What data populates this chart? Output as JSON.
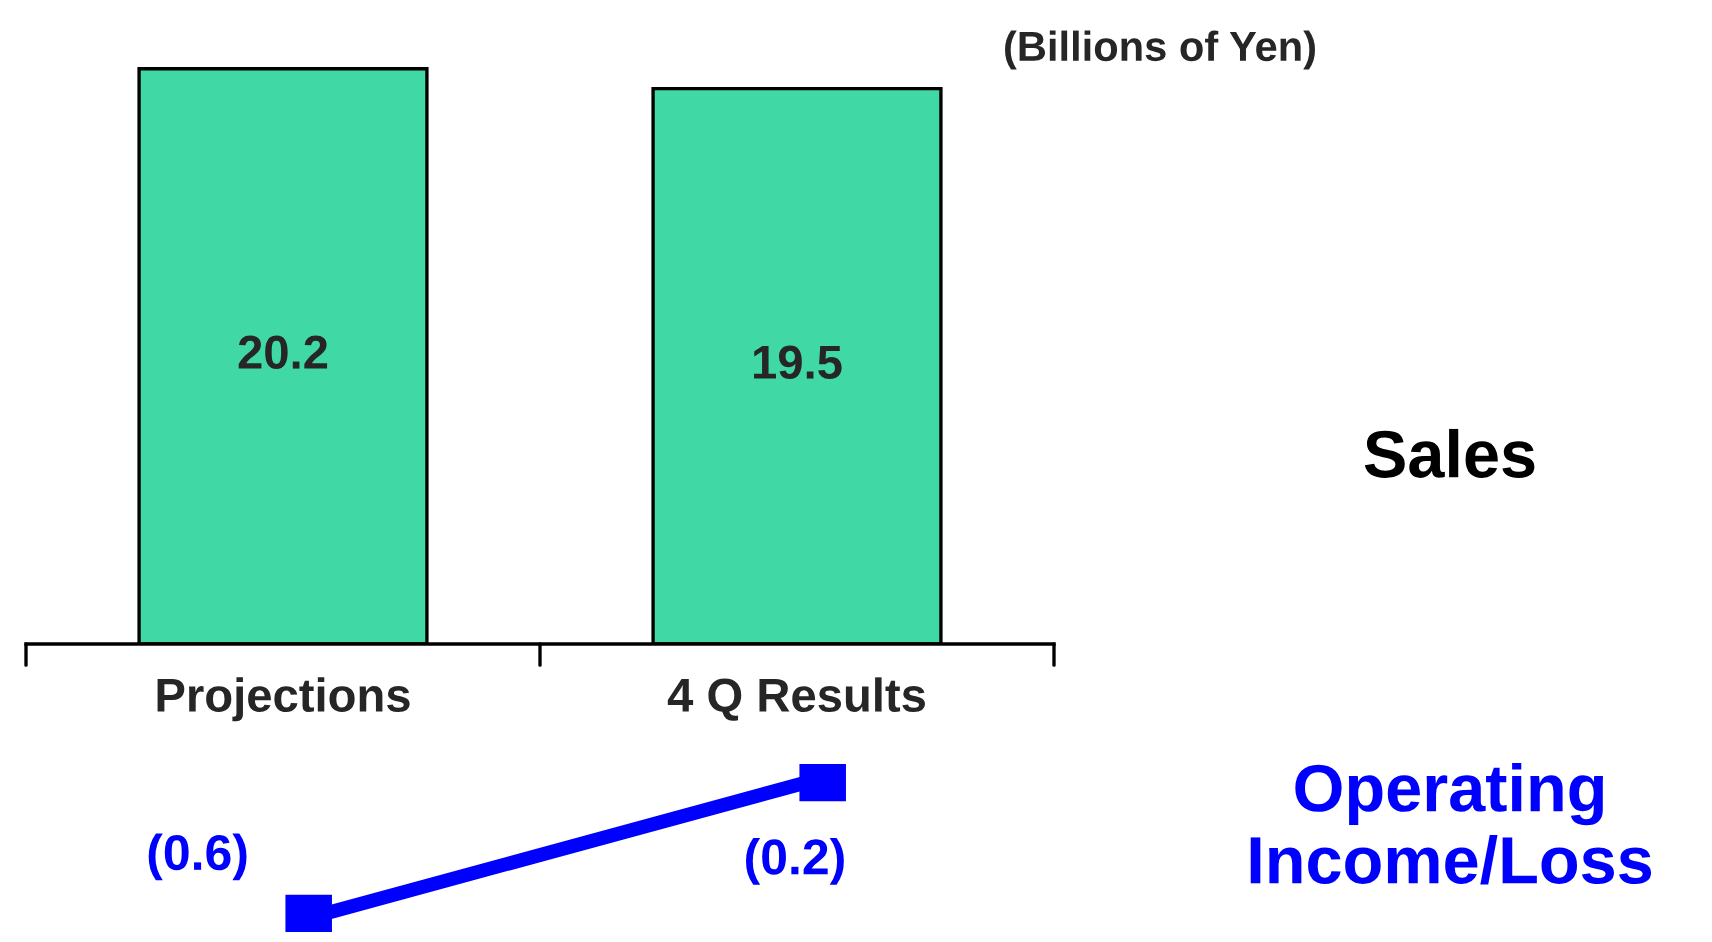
{
  "chart_data": [
    {
      "type": "bar",
      "categories": [
        "Projections",
        "4 Q Results"
      ],
      "annotations": [
        "(Billions of Yen)"
      ],
      "tick_labels": "x",
      "data_labels": true,
      "legend": false,
      "grid": false,
      "series": [
        {
          "name": "Sales",
          "color": "#40d9a6",
          "values": [
            20.2,
            19.5
          ]
        }
      ]
    },
    {
      "type": "line",
      "categories": [
        null,
        null
      ],
      "tick_labels": false,
      "marker": "square",
      "line_style": "solid",
      "legend": false,
      "grid": false,
      "series": [
        {
          "name": "Operating Income/Loss",
          "color": "#0000ff",
          "values": [
            -0.6,
            -0.2
          ],
          "value_labels": [
            "(0.6)",
            "(0.2)"
          ]
        }
      ]
    }
  ]
}
